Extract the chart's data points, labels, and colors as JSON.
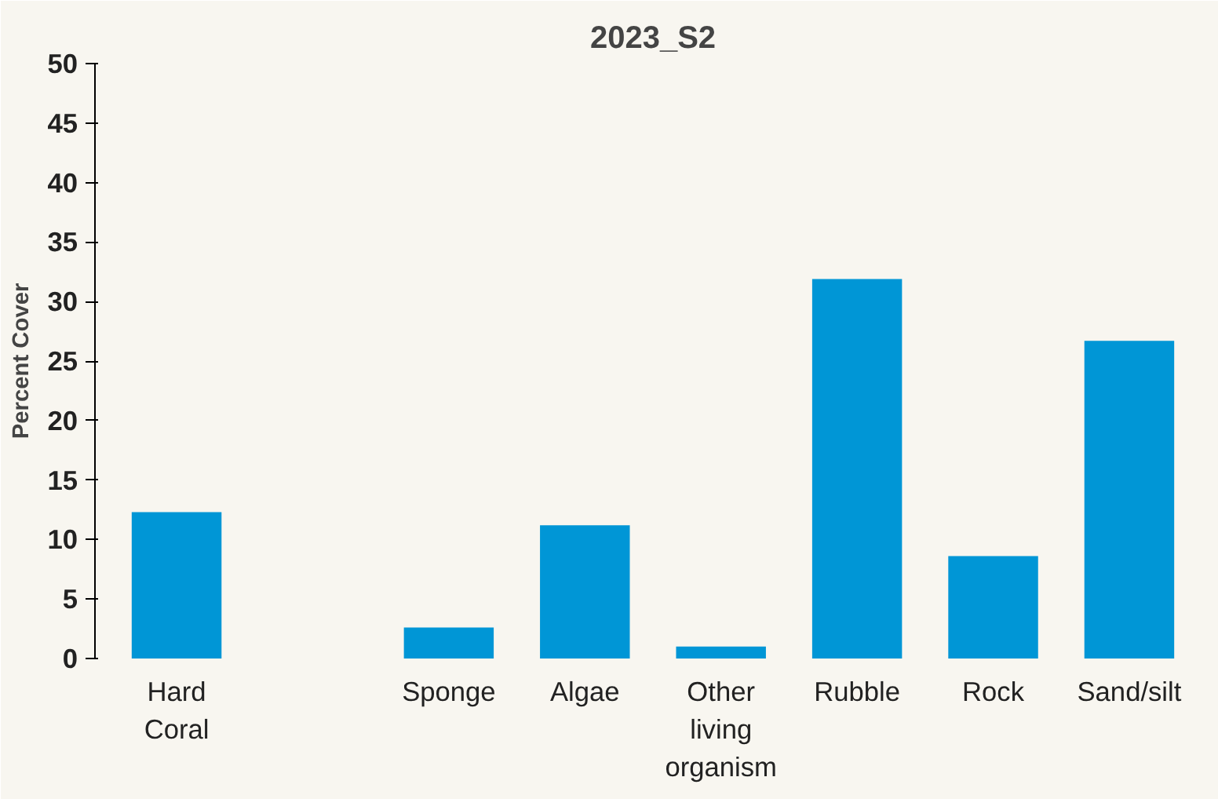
{
  "chart_data": {
    "type": "bar",
    "title": "2023_S2",
    "ylabel": "Percent Cover",
    "categories": [
      "Hard Coral",
      null,
      "Sponge",
      "Algae",
      "Other living organism",
      "Rubble",
      "Rock",
      "Sand/silt"
    ],
    "values": [
      12.3,
      0,
      2.6,
      11.2,
      1.0,
      31.9,
      8.6,
      26.7
    ],
    "color": "#0096d6",
    "ylim": [
      0,
      50
    ],
    "yticks": [
      0,
      5,
      10,
      15,
      20,
      25,
      30,
      35,
      40,
      45,
      50
    ],
    "grid": false
  }
}
